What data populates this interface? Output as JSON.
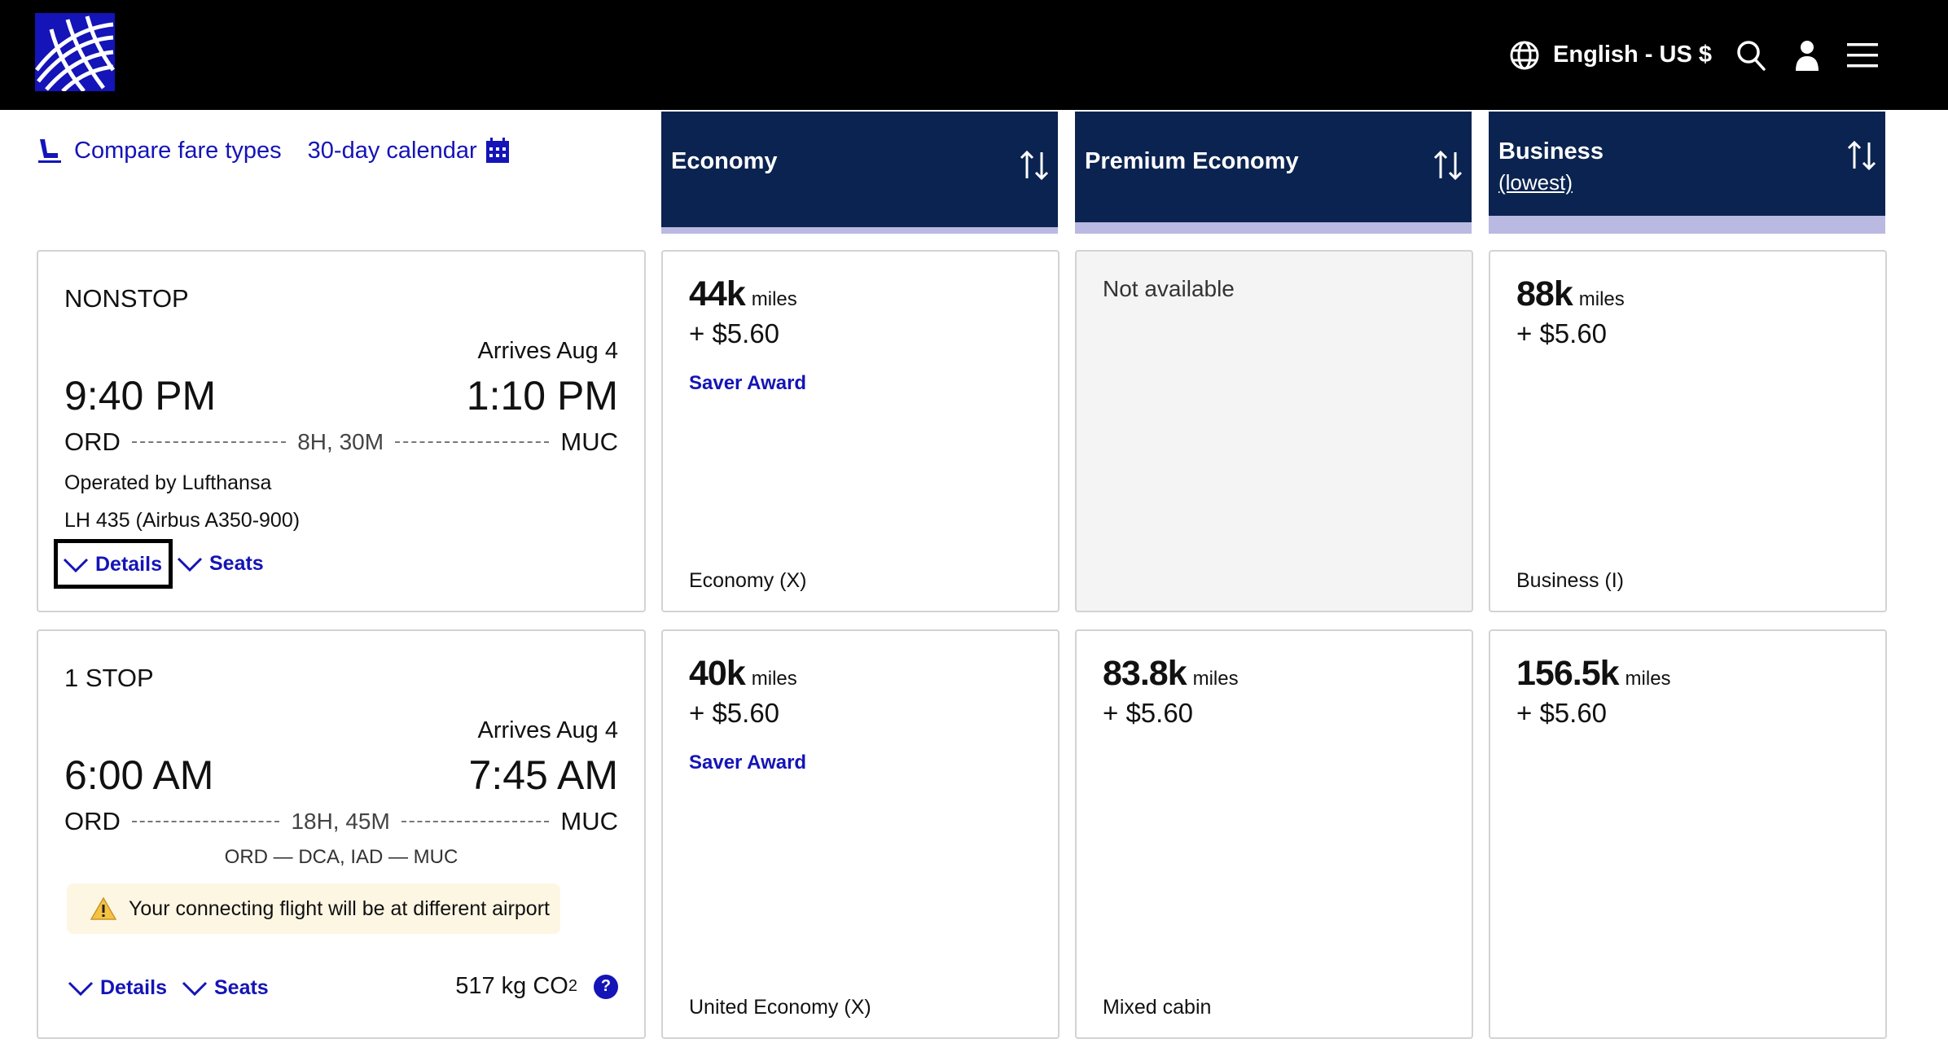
{
  "header": {
    "logo_name": "globe-logo",
    "language_label": "English - US $",
    "icons": [
      "globe-icon",
      "search-icon",
      "user-icon",
      "menu-icon"
    ]
  },
  "tools": {
    "compare_label": "Compare fare types",
    "calendar_label": "30-day calendar"
  },
  "cabins": [
    {
      "name": "Economy",
      "sub": ""
    },
    {
      "name": "Premium Economy",
      "sub": ""
    },
    {
      "name": "Business",
      "sub": "(lowest)"
    }
  ],
  "flights": [
    {
      "stops": "NONSTOP",
      "arrives": "Arrives Aug 4",
      "depart_time": "9:40 PM",
      "arrive_time": "1:10 PM",
      "origin": "ORD",
      "destination": "MUC",
      "duration": "8H, 30M",
      "operated_by": "Operated by Lufthansa",
      "flight_number": "LH 435 (Airbus A350-900)",
      "details_label": "Details",
      "seats_label": "Seats",
      "fares": [
        {
          "miles": "44k",
          "unit": "miles",
          "tax": "+ $5.60",
          "award": "Saver Award",
          "cabin": "Economy (X)"
        },
        {
          "not_available": "Not available"
        },
        {
          "miles": "88k",
          "unit": "miles",
          "tax": "+ $5.60",
          "award": "",
          "cabin": "Business (I)"
        }
      ]
    },
    {
      "stops": "1 STOP",
      "arrives": "Arrives Aug 4",
      "depart_time": "6:00 AM",
      "arrive_time": "7:45 AM",
      "origin": "ORD",
      "destination": "MUC",
      "duration": "18H, 45M",
      "connection": "ORD — DCA,   IAD — MUC",
      "warning": "Your connecting flight will be at different airport",
      "details_label": "Details",
      "seats_label": "Seats",
      "co2_value": "517 kg CO",
      "co2_sub": "2",
      "help_label": "?",
      "fares": [
        {
          "miles": "40k",
          "unit": "miles",
          "tax": "+ $5.60",
          "award": "Saver Award",
          "cabin": "United Economy (X)"
        },
        {
          "miles": "83.8k",
          "unit": "miles",
          "tax": "+ $5.60",
          "award": "",
          "cabin": "Mixed cabin"
        },
        {
          "miles": "156.5k",
          "unit": "miles",
          "tax": "+ $5.60",
          "award": "",
          "cabin": ""
        }
      ]
    }
  ],
  "colors": {
    "brand_blue": "#1414b8",
    "cabin_header": "#0b2350",
    "cabin_stripe": "#b9b9e1",
    "warning_bg": "#fdf6e3"
  }
}
